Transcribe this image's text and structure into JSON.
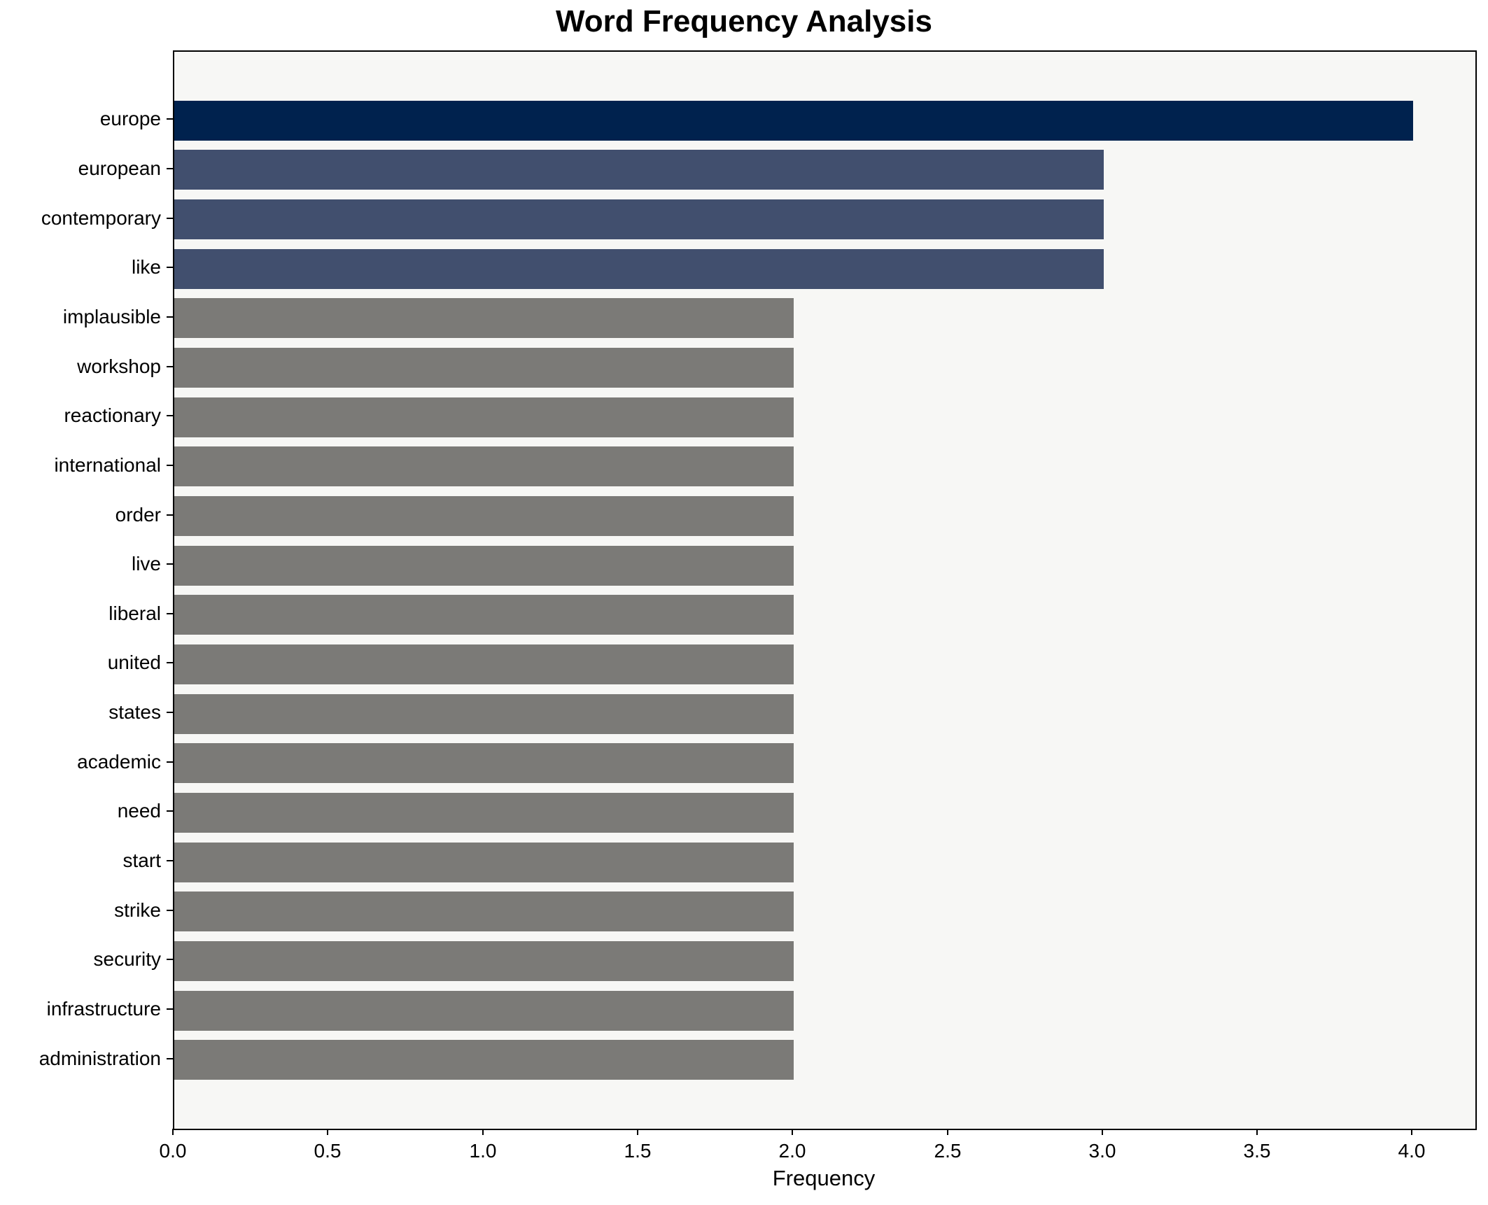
{
  "chart_data": {
    "type": "bar",
    "orientation": "horizontal",
    "title": "Word Frequency Analysis",
    "xlabel": "Frequency",
    "ylabel": "",
    "categories": [
      "europe",
      "european",
      "contemporary",
      "like",
      "implausible",
      "workshop",
      "reactionary",
      "international",
      "order",
      "live",
      "liberal",
      "united",
      "states",
      "academic",
      "need",
      "start",
      "strike",
      "security",
      "infrastructure",
      "administration"
    ],
    "values": [
      4,
      3,
      3,
      3,
      2,
      2,
      2,
      2,
      2,
      2,
      2,
      2,
      2,
      2,
      2,
      2,
      2,
      2,
      2,
      2
    ],
    "bar_colors": [
      "#00224e",
      "#414f6e",
      "#414f6e",
      "#414f6e",
      "#7b7a77",
      "#7b7a77",
      "#7b7a77",
      "#7b7a77",
      "#7b7a77",
      "#7b7a77",
      "#7b7a77",
      "#7b7a77",
      "#7b7a77",
      "#7b7a77",
      "#7b7a77",
      "#7b7a77",
      "#7b7a77",
      "#7b7a77",
      "#7b7a77",
      "#7b7a77"
    ],
    "xlim": [
      0,
      4.2
    ],
    "xtick_labels": [
      "0.0",
      "0.5",
      "1.0",
      "1.5",
      "2.0",
      "2.5",
      "3.0",
      "3.5",
      "4.0"
    ],
    "grid": false,
    "legend": null,
    "plot_background": "#f7f7f5",
    "figure_background": "#ffffff",
    "spine_color": "#000000",
    "text_color": "#000000"
  }
}
